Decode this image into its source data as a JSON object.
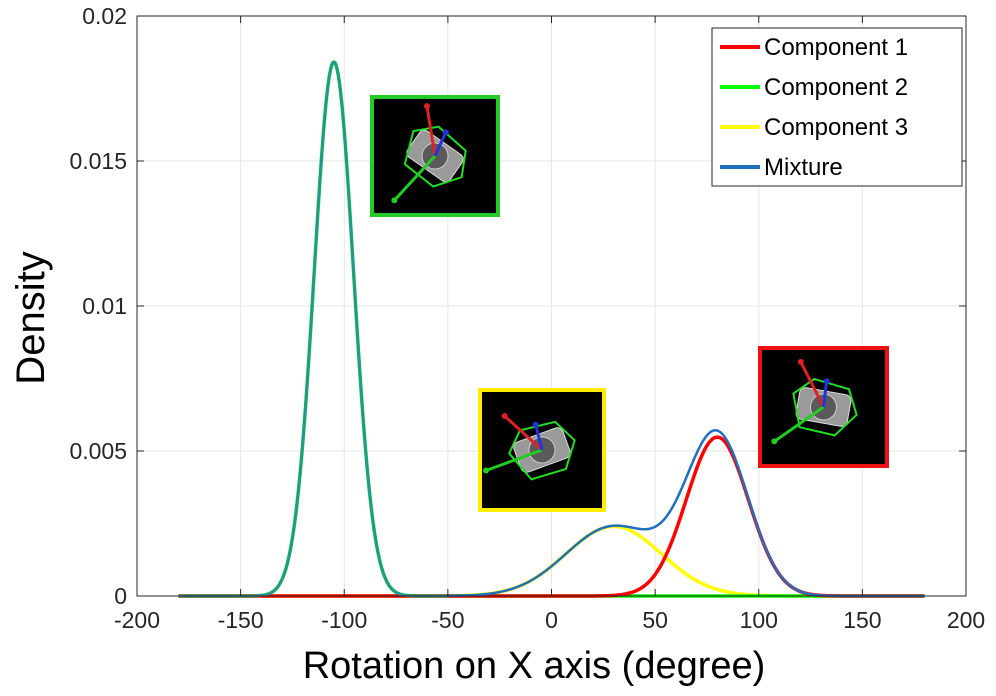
{
  "chart_data": {
    "type": "line",
    "title": "",
    "xlabel": "Rotation on X axis (degree)",
    "ylabel": "Density",
    "xlim": [
      -200,
      200
    ],
    "ylim": [
      0,
      0.02
    ],
    "x_ticks": [
      -200,
      -150,
      -100,
      -50,
      0,
      50,
      100,
      150,
      200
    ],
    "x_tick_labels": [
      "-200",
      "-150",
      "-100",
      "-50",
      "0",
      "50",
      "100",
      "150",
      "200"
    ],
    "y_ticks": [
      0,
      0.005,
      0.01,
      0.015,
      0.02
    ],
    "y_tick_labels": [
      "0",
      "0.005",
      "0.01",
      "0.015",
      "0.02"
    ],
    "grid": true,
    "x_range": [
      -180,
      180
    ],
    "legend_position": "top-right",
    "series": [
      {
        "name": "Component 1",
        "color": "#ff0000",
        "mean": 80,
        "std": 15,
        "weight": 0.206
      },
      {
        "name": "Component 2",
        "color": "#00ff00",
        "mean": -105,
        "std": 9.5,
        "weight": 0.4385
      },
      {
        "name": "Component 3",
        "color": "#ffff00",
        "mean": 30,
        "std": 23,
        "weight": 0.1385
      },
      {
        "name": "Mixture",
        "color": "#1f6fbf"
      }
    ],
    "annotations": [
      {
        "label": "Component 2 example pose",
        "border_color": "#22cc22",
        "near_x": -100
      },
      {
        "label": "Component 3 example pose",
        "border_color": "#ffee00",
        "near_x": -5
      },
      {
        "label": "Component 1 example pose",
        "border_color": "#ee1111",
        "near_x": 110
      }
    ]
  }
}
